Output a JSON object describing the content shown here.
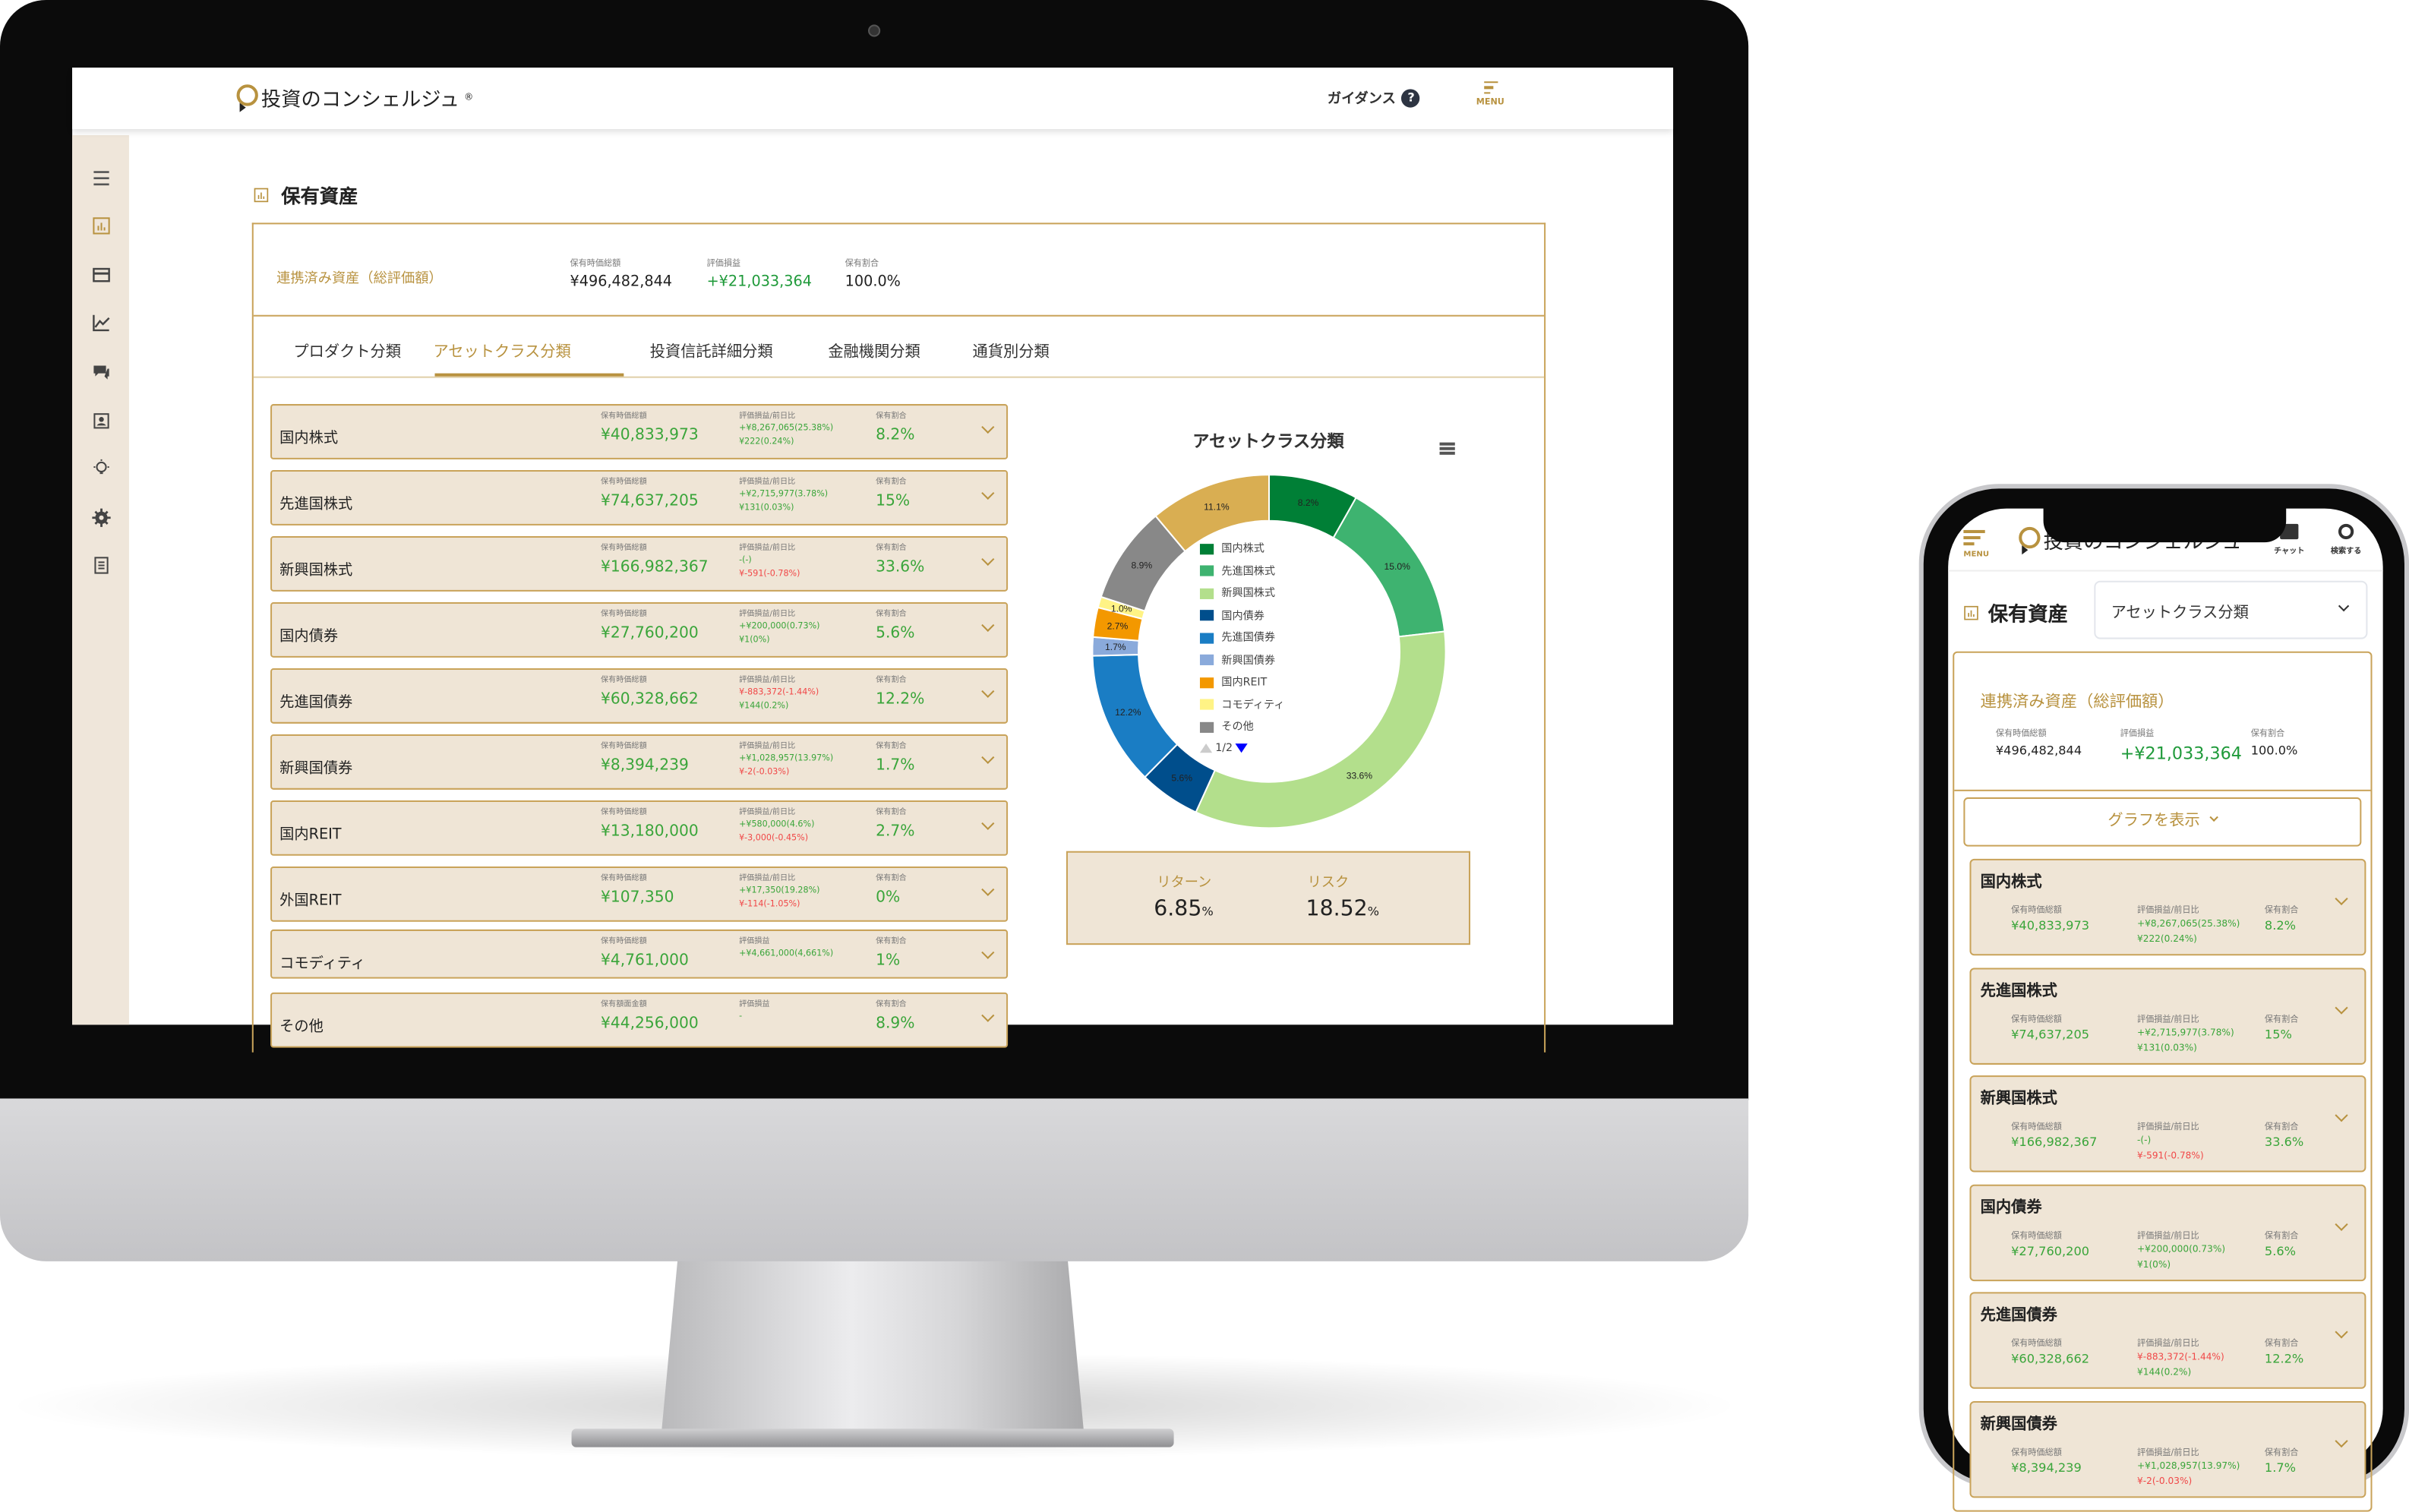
{
  "app": {
    "logo_text": "投資のコンシェルジュ",
    "registered_mark": "®",
    "guidance_label": "ガイダンス",
    "help_icon": "?",
    "menu_label": "MENU",
    "chat_label": "チャット",
    "search_label": "検索する"
  },
  "page": {
    "title": "保有資産"
  },
  "summary": {
    "title": "連携済み資産（総評価額）",
    "total_label": "保有時価総額",
    "total": "¥496,482,844",
    "pl_label": "評価損益",
    "pl": "+¥21,033,364",
    "ratio_label": "保有割合",
    "ratio": "100.0%"
  },
  "tabs": [
    {
      "label": "プロダクト分類"
    },
    {
      "label": "アセットクラス分類",
      "active": true
    },
    {
      "label": "投資信託詳細分類"
    },
    {
      "label": "金融機関分類"
    },
    {
      "label": "通貨別分類"
    }
  ],
  "rows": [
    {
      "name": "国内株式",
      "value_label": "保有時価総額",
      "value": "¥40,833,973",
      "pl_label": "評価損益/前日比",
      "pl": "+¥8,267,065(25.38%)",
      "daily": "¥222(0.24%)",
      "ratio_label": "保有割合",
      "ratio": "8.2%"
    },
    {
      "name": "先進国株式",
      "value_label": "保有時価総額",
      "value": "¥74,637,205",
      "pl_label": "評価損益/前日比",
      "pl": "+¥2,715,977(3.78%)",
      "daily": "¥131(0.03%)",
      "ratio_label": "保有割合",
      "ratio": "15%"
    },
    {
      "name": "新興国株式",
      "value_label": "保有時価総額",
      "value": "¥166,982,367",
      "pl_label": "評価損益/前日比",
      "pl": "-(-)",
      "daily": "¥-591(-0.78%)",
      "ratio_label": "保有割合",
      "ratio": "33.6%"
    },
    {
      "name": "国内債券",
      "value_label": "保有時価総額",
      "value": "¥27,760,200",
      "pl_label": "評価損益/前日比",
      "pl": "+¥200,000(0.73%)",
      "daily": "¥1(0%)",
      "ratio_label": "保有割合",
      "ratio": "5.6%"
    },
    {
      "name": "先進国債券",
      "value_label": "保有時価総額",
      "value": "¥60,328,662",
      "pl_label": "評価損益/前日比",
      "pl": "¥-883,372(-1.44%)",
      "daily": "¥144(0.2%)",
      "ratio_label": "保有割合",
      "ratio": "12.2%"
    },
    {
      "name": "新興国債券",
      "value_label": "保有時価総額",
      "value": "¥8,394,239",
      "pl_label": "評価損益/前日比",
      "pl": "+¥1,028,957(13.97%)",
      "daily": "¥-2(-0.03%)",
      "ratio_label": "保有割合",
      "ratio": "1.7%"
    },
    {
      "name": "国内REIT",
      "value_label": "保有時価総額",
      "value": "¥13,180,000",
      "pl_label": "評価損益/前日比",
      "pl": "+¥580,000(4.6%)",
      "daily": "¥-3,000(-0.45%)",
      "ratio_label": "保有割合",
      "ratio": "2.7%"
    },
    {
      "name": "外国REIT",
      "value_label": "保有時価総額",
      "value": "¥107,350",
      "pl_label": "評価損益/前日比",
      "pl": "+¥17,350(19.28%)",
      "daily": "¥-114(-1.05%)",
      "ratio_label": "保有割合",
      "ratio": "0%"
    },
    {
      "name": "コモディティ",
      "value_label": "保有時価総額",
      "value": "¥4,761,000",
      "pl_label": "評価損益",
      "pl": "+¥4,661,000(4,661%)",
      "daily": "",
      "ratio_label": "保有割合",
      "ratio": "1%"
    },
    {
      "name": "その他",
      "value_label": "保有額面金額",
      "value": "¥44,256,000",
      "pl_label": "評価損益",
      "pl": "-",
      "daily": "",
      "ratio_label": "保有割合",
      "ratio": "8.9%"
    }
  ],
  "return_risk": {
    "return_label": "リターン",
    "return_value": "6.85",
    "risk_label": "リスク",
    "risk_value": "18.52",
    "unit": "%"
  },
  "mobile": {
    "select_value": "アセットクラス分類",
    "show_graph_label": "グラフを表示"
  },
  "chart_data": {
    "type": "pie",
    "variant": "donut",
    "title": "アセットクラス分類",
    "slices": [
      {
        "name": "国内株式",
        "value": 8.2,
        "label": "8.2%",
        "color": "#007f36"
      },
      {
        "name": "先進国株式",
        "value": 15.0,
        "label": "15.0%",
        "color": "#3eb370"
      },
      {
        "name": "新興国株式",
        "value": 33.6,
        "label": "33.6%",
        "color": "#b3df8c"
      },
      {
        "name": "国内債券",
        "value": 5.6,
        "label": "5.6%",
        "color": "#004e8c"
      },
      {
        "name": "先進国債券",
        "value": 12.2,
        "label": "12.2%",
        "color": "#1a7dc4"
      },
      {
        "name": "新興国債券",
        "value": 1.7,
        "label": "1.7%",
        "color": "#8aaadb"
      },
      {
        "name": "国内REIT",
        "value": 2.7,
        "label": "2.7%",
        "color": "#f39800"
      },
      {
        "name": "コモディティ",
        "value": 1.0,
        "label": "1.0%",
        "color": "#fff385"
      },
      {
        "name": "その他",
        "value": 8.9,
        "label": "8.9%",
        "color": "#888888"
      },
      {
        "name": "",
        "value": 11.1,
        "label": "11.1%",
        "color": "#d9ae52"
      }
    ],
    "legend": [
      "国内株式",
      "先進国株式",
      "新興国株式",
      "国内債券",
      "先進国債券",
      "新興国債券",
      "国内REIT",
      "コモディティ",
      "その他"
    ],
    "legend_page": "1/2",
    "legend_placement": "center"
  }
}
